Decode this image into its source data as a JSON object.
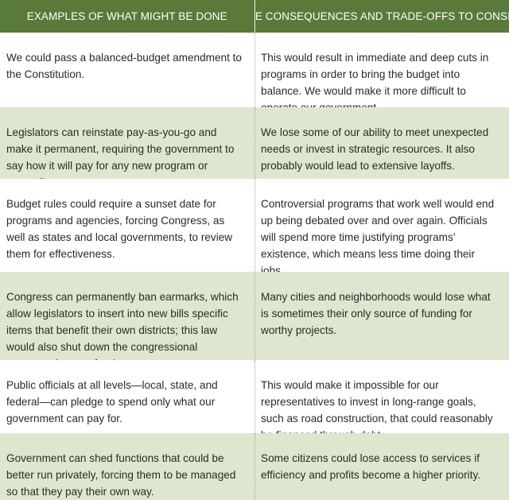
{
  "header": {
    "col1": "EXAMPLES OF WHAT MIGHT BE DONE",
    "col2": "SOME CONSEQUENCES AND TRADE-OFFS TO CONSIDER"
  },
  "rows": [
    {
      "example": "We could pass a balanced-budget amendment to the Constitution.",
      "consequence": "This would result in immediate and deep cuts in programs in order to bring the budget into balance. We would make it more difficult to operate our government."
    },
    {
      "example": "Legislators can reinstate pay-as-you-go and make it permanent, requiring the government to say how it will pay for any new program or expenditure.",
      "consequence": "We lose some of our ability to meet unexpected needs or invest in strategic resources. It also probably would lead to extensive layoffs."
    },
    {
      "example": "Budget rules could require a sunset date for programs and agencies, forcing Congress, as well as states and local governments, to review them for effectiveness.",
      "consequence": "Controversial programs that work well would end up being debated over and over again. Officials will spend more time justifying programs’ existence, which means less time doing their jobs."
    },
    {
      "example": "Congress can permanently ban earmarks, which allow legislators to insert into new bills specific items that benefit their own districts; this law would also shut down the congressional accounts that pay for them.",
      "consequence": "Many cities and neighborhoods would lose what is sometimes their only source of funding for worthy projects."
    },
    {
      "example": "Public officials at all levels—local, state, and federal—can pledge to spend only what our government can pay for.",
      "consequence": "This would make it impossible for our representatives to invest in long-range goals, such as road construction, that could reasonably be financed through debt."
    },
    {
      "example": "Government can shed functions that could be better run privately, forcing them to be managed so that they pay their own way.",
      "consequence": "Some citizens could lose access to services if efficiency and profits become a higher priority."
    }
  ]
}
